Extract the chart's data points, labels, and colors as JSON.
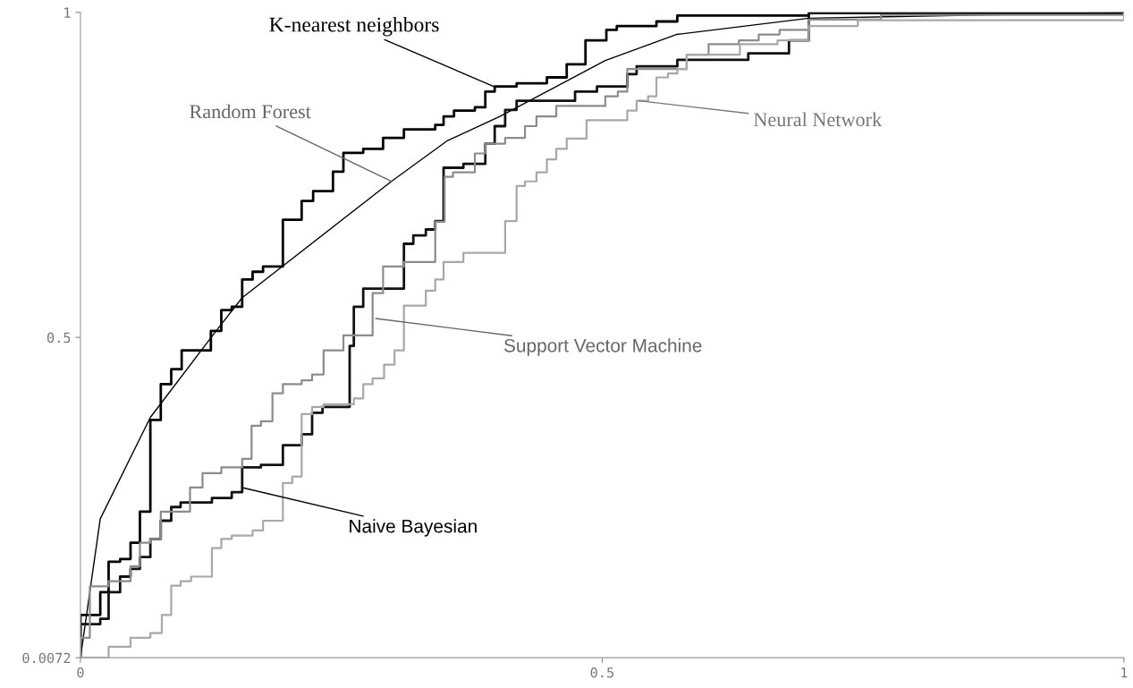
{
  "chart_data": {
    "type": "step",
    "xlim": [
      0,
      1
    ],
    "ylim": [
      0.0072,
      1
    ],
    "xticks": [
      0,
      0.5,
      1
    ],
    "yticks": [
      0.0072,
      0.5,
      1
    ],
    "grid": false,
    "series": [
      {
        "color": "#000000",
        "x": [
          0,
          0,
          0.019,
          0.027,
          0.038,
          0.048,
          0.057,
          0.067,
          0.077,
          0.087,
          0.097,
          0.125,
          0.135,
          0.145,
          0.155,
          0.165,
          0.175,
          0.194,
          0.212,
          0.223,
          0.242,
          0.252,
          0.271,
          0.29,
          0.31,
          0.34,
          0.348,
          0.358,
          0.378,
          0.388,
          0.397,
          0.418,
          0.447,
          0.466,
          0.484,
          0.504,
          0.514,
          0.552,
          0.572,
          0.698,
          1
        ],
        "values": [
          0.0072,
          0.073,
          0.108,
          0.155,
          0.159,
          0.184,
          0.232,
          0.373,
          0.428,
          0.451,
          0.48,
          0.51,
          0.542,
          0.547,
          0.589,
          0.601,
          0.609,
          0.681,
          0.71,
          0.725,
          0.755,
          0.784,
          0.79,
          0.807,
          0.82,
          0.827,
          0.84,
          0.849,
          0.854,
          0.878,
          0.886,
          0.891,
          0.9,
          0.92,
          0.957,
          0.973,
          0.979,
          0.986,
          0.995,
          0.999,
          1
        ]
      },
      {
        "type": "line",
        "color": "#000000",
        "x": [
          0,
          0.019,
          0.067,
          0.13,
          0.155,
          0.298,
          0.351,
          0.402,
          0.503,
          0.571,
          0.698,
          1
        ],
        "values": [
          0.0072,
          0.221,
          0.377,
          0.51,
          0.561,
          0.74,
          0.802,
          0.84,
          0.926,
          0.966,
          0.991,
          1
        ]
      },
      {
        "color": "#111111",
        "x": [
          0,
          0,
          0.019,
          0.027,
          0.038,
          0.048,
          0.057,
          0.067,
          0.077,
          0.087,
          0.096,
          0.126,
          0.145,
          0.155,
          0.173,
          0.194,
          0.212,
          0.222,
          0.232,
          0.258,
          0.262,
          0.271,
          0.31,
          0.319,
          0.331,
          0.34,
          0.348,
          0.367,
          0.388,
          0.397,
          0.407,
          0.418,
          0.474,
          0.495,
          0.524,
          0.533,
          0.572,
          0.64,
          0.679,
          0.698,
          1
        ],
        "values": [
          0.0072,
          0.059,
          0.067,
          0.108,
          0.132,
          0.144,
          0.162,
          0.19,
          0.218,
          0.239,
          0.246,
          0.253,
          0.262,
          0.3,
          0.304,
          0.334,
          0.351,
          0.384,
          0.393,
          0.487,
          0.547,
          0.575,
          0.644,
          0.657,
          0.666,
          0.679,
          0.761,
          0.767,
          0.798,
          0.825,
          0.85,
          0.864,
          0.878,
          0.886,
          0.905,
          0.917,
          0.927,
          0.937,
          0.957,
          0.999,
          1
        ]
      },
      {
        "color": "#8c8c8c",
        "x": [
          0,
          0,
          0.009,
          0.027,
          0.048,
          0.057,
          0.067,
          0.077,
          0.105,
          0.117,
          0.135,
          0.155,
          0.164,
          0.173,
          0.184,
          0.194,
          0.212,
          0.222,
          0.233,
          0.252,
          0.28,
          0.29,
          0.31,
          0.34,
          0.349,
          0.357,
          0.378,
          0.388,
          0.407,
          0.426,
          0.437,
          0.456,
          0.503,
          0.515,
          0.524,
          0.581,
          0.602,
          0.631,
          0.65,
          0.67,
          0.698,
          0.767,
          1
        ],
        "values": [
          0.0072,
          0.038,
          0.117,
          0.125,
          0.148,
          0.184,
          0.19,
          0.232,
          0.269,
          0.291,
          0.3,
          0.313,
          0.364,
          0.371,
          0.414,
          0.428,
          0.434,
          0.443,
          0.48,
          0.503,
          0.568,
          0.609,
          0.616,
          0.678,
          0.747,
          0.754,
          0.783,
          0.798,
          0.807,
          0.825,
          0.84,
          0.856,
          0.871,
          0.878,
          0.913,
          0.935,
          0.951,
          0.957,
          0.966,
          0.973,
          0.989,
          0.996,
          1
        ]
      },
      {
        "color": "#a8a8a8",
        "x": [
          0,
          0.027,
          0.048,
          0.067,
          0.078,
          0.087,
          0.096,
          0.106,
          0.126,
          0.135,
          0.145,
          0.165,
          0.175,
          0.194,
          0.203,
          0.212,
          0.222,
          0.233,
          0.262,
          0.271,
          0.28,
          0.291,
          0.301,
          0.31,
          0.331,
          0.34,
          0.348,
          0.367,
          0.407,
          0.418,
          0.426,
          0.437,
          0.447,
          0.456,
          0.466,
          0.485,
          0.524,
          0.533,
          0.544,
          0.552,
          0.563,
          0.572,
          0.581,
          0.632,
          0.668,
          0.698,
          0.745,
          1
        ],
        "values": [
          0.0072,
          0.024,
          0.038,
          0.045,
          0.073,
          0.118,
          0.125,
          0.132,
          0.176,
          0.19,
          0.195,
          0.203,
          0.218,
          0.276,
          0.286,
          0.382,
          0.393,
          0.397,
          0.406,
          0.428,
          0.437,
          0.458,
          0.48,
          0.549,
          0.572,
          0.589,
          0.616,
          0.63,
          0.679,
          0.733,
          0.74,
          0.754,
          0.774,
          0.79,
          0.806,
          0.834,
          0.849,
          0.864,
          0.871,
          0.9,
          0.906,
          0.913,
          0.935,
          0.951,
          0.957,
          0.979,
          0.988,
          1
        ]
      }
    ],
    "annotations": [
      {
        "text": "K-nearest neighbors",
        "x": 0.396,
        "y": 0.886
      },
      {
        "text": "Random Forest",
        "x": 0.298,
        "y": 0.74
      },
      {
        "text": "Neural Network",
        "x": 0.535,
        "y": 0.864
      },
      {
        "text": "Support Vector Machine",
        "x": 0.283,
        "y": 0.529
      },
      {
        "text": "Naive Bayesian",
        "x": 0.155,
        "y": 0.269
      }
    ]
  }
}
